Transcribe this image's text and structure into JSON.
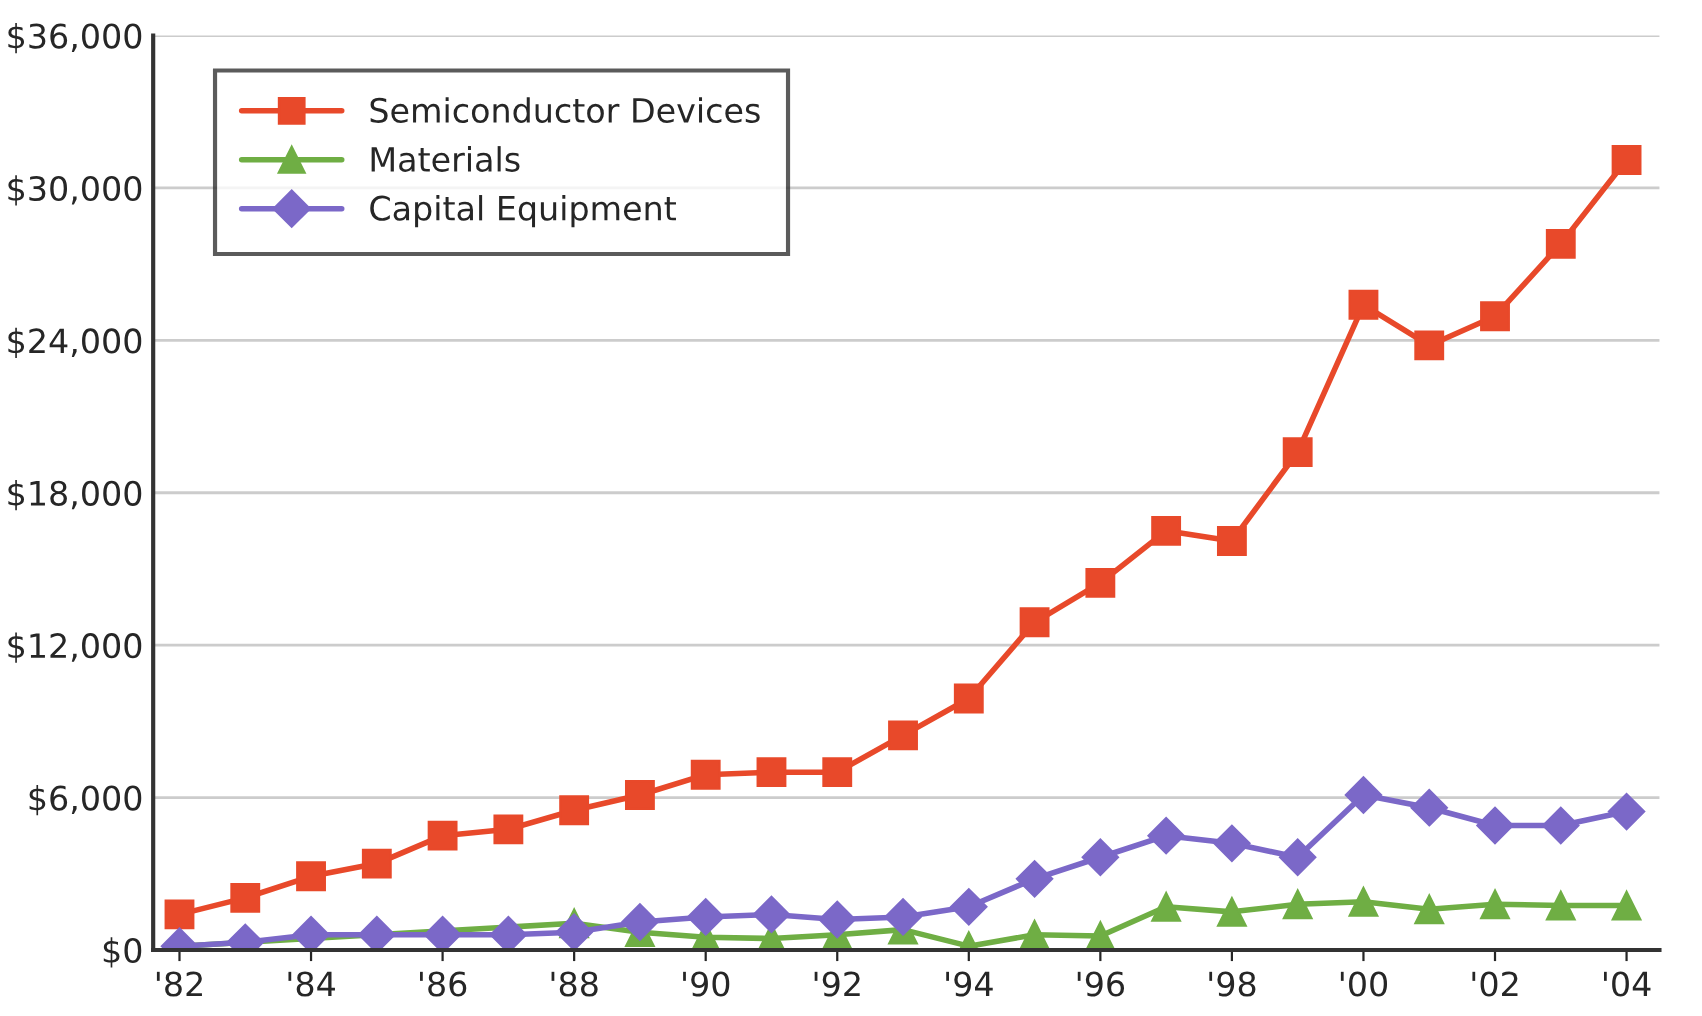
{
  "chart_data": {
    "type": "line",
    "x": [
      1982,
      1983,
      1984,
      1985,
      1986,
      1987,
      1988,
      1989,
      1990,
      1991,
      1992,
      1993,
      1994,
      1995,
      1996,
      1997,
      1998,
      1999,
      2000,
      2001,
      2002,
      2003,
      2004
    ],
    "series": [
      {
        "name": "Semiconductor Devices",
        "color": "#e8492a",
        "marker": "square",
        "values": [
          1400,
          2050,
          2900,
          3400,
          4500,
          4750,
          5500,
          6100,
          6900,
          7000,
          7000,
          8450,
          9900,
          12900,
          14450,
          16500,
          16100,
          19600,
          25400,
          23800,
          24950,
          27800,
          31100
        ]
      },
      {
        "name": "Materials",
        "color": "#6fae44",
        "marker": "triangle",
        "values": [
          150,
          null,
          null,
          null,
          null,
          null,
          1050,
          700,
          500,
          450,
          600,
          800,
          150,
          600,
          550,
          1700,
          1500,
          1800,
          1900,
          1600,
          1800,
          1750,
          1750
        ]
      },
      {
        "name": "Capital Equipment",
        "color": "#7b68c8",
        "marker": "diamond",
        "values": [
          150,
          300,
          600,
          600,
          600,
          600,
          700,
          1100,
          1300,
          1400,
          1200,
          1300,
          1700,
          2800,
          3650,
          4500,
          4200,
          3650,
          6100,
          5600,
          4900,
          4900,
          5450
        ]
      }
    ],
    "xlim": [
      1981.6,
      2004.5
    ],
    "xticks": [
      {
        "value": 1982,
        "label": "'82"
      },
      {
        "value": 1984,
        "label": "'84"
      },
      {
        "value": 1986,
        "label": "'86"
      },
      {
        "value": 1988,
        "label": "'88"
      },
      {
        "value": 1990,
        "label": "'90"
      },
      {
        "value": 1992,
        "label": "'92"
      },
      {
        "value": 1994,
        "label": "'94"
      },
      {
        "value": 1996,
        "label": "'96"
      },
      {
        "value": 1998,
        "label": "'98"
      },
      {
        "value": 2000,
        "label": "'00"
      },
      {
        "value": 2002,
        "label": "'02"
      },
      {
        "value": 2004,
        "label": "'04"
      }
    ],
    "ylim": [
      0,
      36000
    ],
    "yticks": [
      {
        "value": 0,
        "label": "$0"
      },
      {
        "value": 6000,
        "label": "$6,000"
      },
      {
        "value": 12000,
        "label": "$12,000"
      },
      {
        "value": 18000,
        "label": "$18,000"
      },
      {
        "value": 24000,
        "label": "$24,000"
      },
      {
        "value": 30000,
        "label": "$30,000"
      },
      {
        "value": 36000,
        "label": "$36,000"
      }
    ],
    "grid": "y",
    "legend": "top left",
    "line_style": "solid"
  }
}
